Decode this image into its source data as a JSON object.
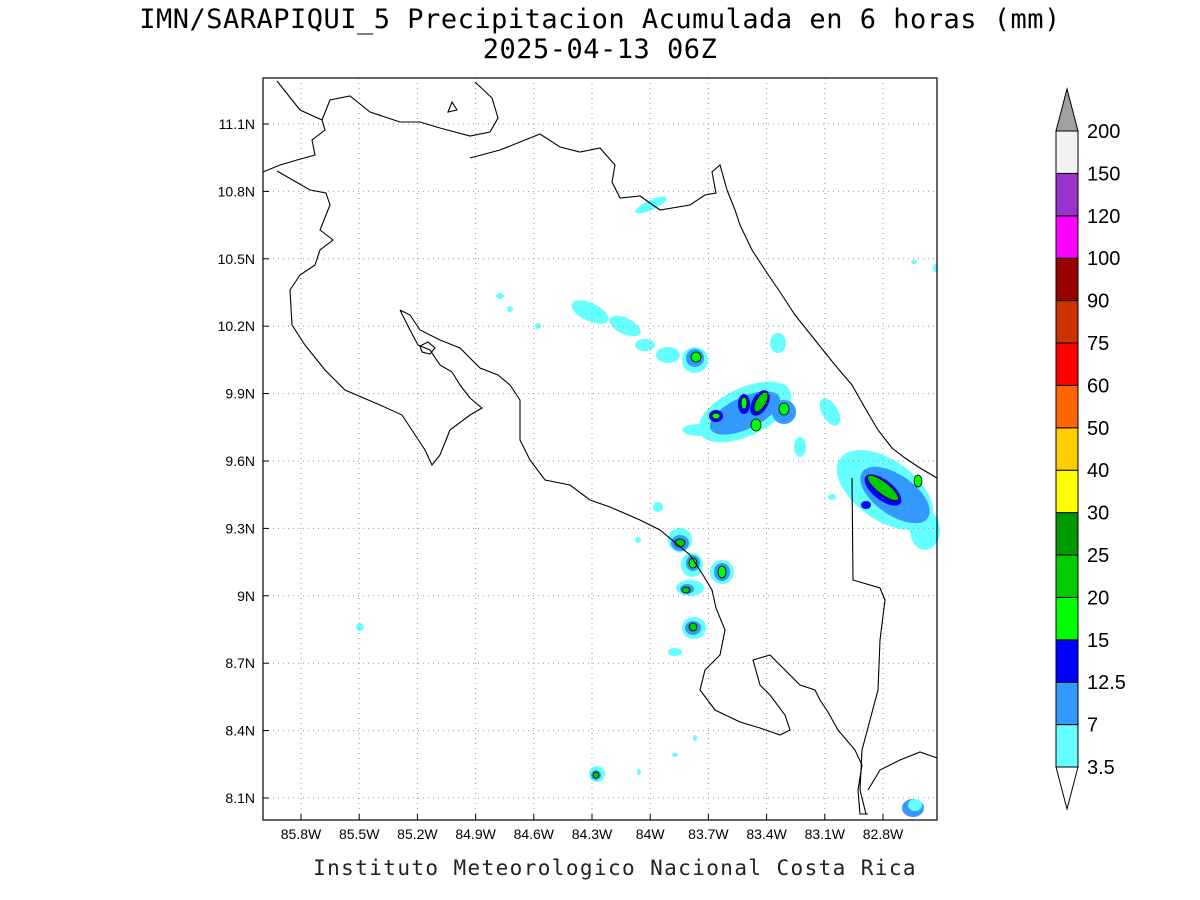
{
  "title": "IMN/SARAPIQUI_5 Precipitacion Acumulada en 6 horas (mm)",
  "subtitle": "2025-04-13 06Z",
  "footer": "Instituto Meteorologico Nacional Costa Rica",
  "lat_labels": [
    "11.1N",
    "10.8N",
    "10.5N",
    "10.2N",
    "9.9N",
    "9.6N",
    "9.3N",
    "9N",
    "8.7N",
    "8.4N",
    "8.1N"
  ],
  "lon_labels": [
    "85.8W",
    "85.5W",
    "85.2W",
    "84.9W",
    "84.6W",
    "84.3W",
    "84W",
    "83.7W",
    "83.4W",
    "83.1W",
    "82.8W"
  ],
  "map": {
    "lon_range": [
      -86.0,
      -82.5
    ],
    "lat_range": [
      8.0,
      11.2
    ],
    "grid": true,
    "coastline_color": "#000000"
  },
  "legend": {
    "under_color": "#ffffff",
    "over_color": "#a0a0a0",
    "items": [
      {
        "label": "3.5",
        "color": "#66ffff"
      },
      {
        "label": "7",
        "color": "#3399ff"
      },
      {
        "label": "12.5",
        "color": "#0000ff"
      },
      {
        "label": "15",
        "color": "#00ff00"
      },
      {
        "label": "20",
        "color": "#00cc00"
      },
      {
        "label": "25",
        "color": "#009900"
      },
      {
        "label": "30",
        "color": "#ffff00"
      },
      {
        "label": "40",
        "color": "#ffcc00"
      },
      {
        "label": "50",
        "color": "#ff6600"
      },
      {
        "label": "60",
        "color": "#ff0000"
      },
      {
        "label": "75",
        "color": "#cc3300"
      },
      {
        "label": "90",
        "color": "#990000"
      },
      {
        "label": "100",
        "color": "#ff00ff"
      },
      {
        "label": "120",
        "color": "#9933cc"
      },
      {
        "label": "150",
        "color": "#f2f2f2"
      },
      {
        "label": "200",
        "color": null
      }
    ]
  }
}
